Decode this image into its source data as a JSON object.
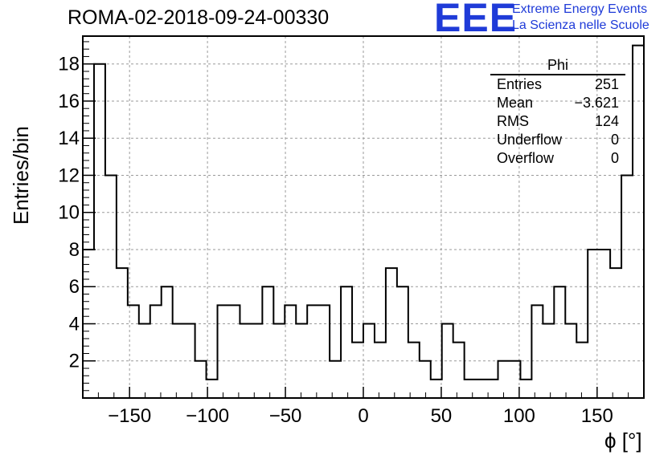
{
  "header": {
    "title": "ROMA-02-2018-09-24-00330",
    "logo_letters": "EEE",
    "logo_line1": "Extreme Energy Events",
    "logo_line2": "La Scienza nelle Scuole"
  },
  "stats_box": {
    "name": "Phi",
    "rows": [
      {
        "label": "Entries",
        "value": "251"
      },
      {
        "label": "Mean",
        "value": "−3.621"
      },
      {
        "label": "RMS",
        "value": "124"
      },
      {
        "label": "Underflow",
        "value": "0"
      },
      {
        "label": "Overflow",
        "value": "0"
      }
    ]
  },
  "chart_data": {
    "type": "bar",
    "style": "step histogram",
    "ylabel": "Entries/bin",
    "xlabel": "ϕ [°]",
    "xlim": [
      -180,
      180
    ],
    "ylim": [
      0,
      19.5
    ],
    "grid": true,
    "bin_edges_start": -180,
    "bin_width": 7.2,
    "values": [
      8,
      18,
      12,
      7,
      5,
      4,
      5,
      6,
      4,
      4,
      2,
      1,
      5,
      5,
      4,
      4,
      6,
      4,
      5,
      4,
      5,
      5,
      2,
      6,
      3,
      4,
      3,
      7,
      6,
      3,
      2,
      1,
      4,
      3,
      1,
      1,
      1,
      2,
      2,
      1,
      5,
      4,
      6,
      4,
      3,
      8,
      8,
      7,
      12,
      19
    ],
    "x_ticks": [
      "−150",
      "−100",
      "−50",
      "0",
      "50",
      "100",
      "150"
    ],
    "x_tick_values": [
      -150,
      -100,
      -50,
      0,
      50,
      100,
      150
    ],
    "y_ticks": [
      "2",
      "4",
      "6",
      "8",
      "10",
      "12",
      "14",
      "16",
      "18"
    ],
    "y_tick_values": [
      2,
      4,
      6,
      8,
      10,
      12,
      14,
      16,
      18
    ]
  }
}
